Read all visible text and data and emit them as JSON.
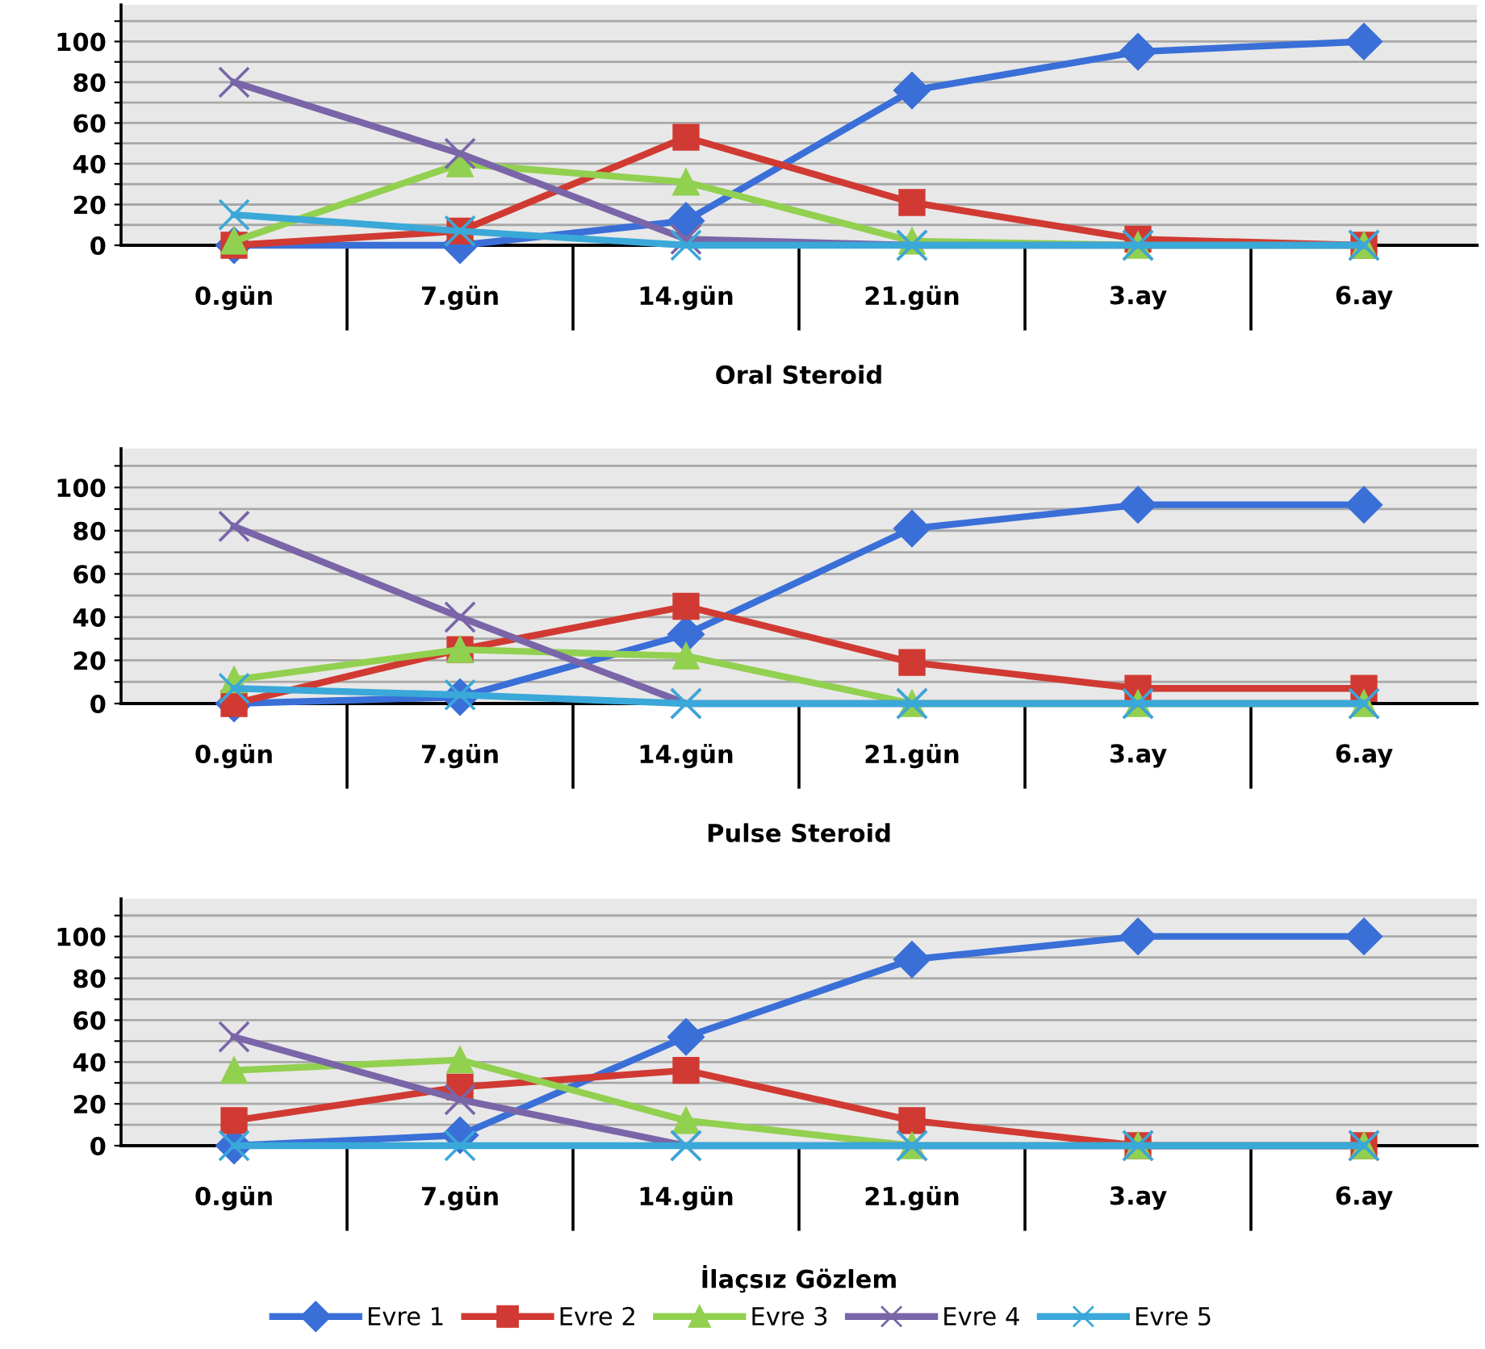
{
  "chart_data": [
    {
      "type": "line",
      "xlabel": "Oral Steroid",
      "categories": [
        "0.gün",
        "7.gün",
        "14.gün",
        "21.gün",
        "3.ay",
        "6.ay"
      ],
      "ylim": [
        0,
        118
      ],
      "yticks": [
        0,
        {
          "value": 10,
          "label": null
        },
        20,
        {
          "value": 30,
          "label": null
        },
        40,
        {
          "value": 50,
          "label": null
        },
        60,
        {
          "value": 70,
          "label": null
        },
        80,
        {
          "value": 90,
          "label": null
        },
        100,
        {
          "value": 110,
          "label": null
        }
      ],
      "grid": "y",
      "legend": "bottom",
      "tick_labels": "y",
      "series": [
        {
          "name": "Evre 1",
          "color": "#3a6fd8",
          "marker": "diamond",
          "values": [
            0,
            0,
            12,
            76,
            95,
            100
          ]
        },
        {
          "name": "Evre 2",
          "color": "#d03a32",
          "marker": "square",
          "values": [
            0,
            7,
            53,
            21,
            3,
            0
          ]
        },
        {
          "name": "Evre 3",
          "color": "#92d050",
          "marker": "triangle",
          "values": [
            2,
            40,
            31,
            2,
            0,
            0
          ]
        },
        {
          "name": "Evre 4",
          "color": "#7a65a8",
          "marker": "cross",
          "values": [
            80,
            45,
            3,
            0,
            0,
            0
          ]
        },
        {
          "name": "Evre 5",
          "color": "#3aa8d8",
          "marker": "cross",
          "values": [
            15,
            7,
            0,
            0,
            0,
            0
          ]
        }
      ]
    },
    {
      "type": "line",
      "xlabel": "Pulse Steroid",
      "categories": [
        "0.gün",
        "7.gün",
        "14.gün",
        "21.gün",
        "3.ay",
        "6.ay"
      ],
      "ylim": [
        0,
        118
      ],
      "yticks": [
        0,
        {
          "value": 10,
          "label": null
        },
        20,
        {
          "value": 30,
          "label": null
        },
        40,
        {
          "value": 50,
          "label": null
        },
        60,
        {
          "value": 70,
          "label": null
        },
        80,
        {
          "value": 90,
          "label": null
        },
        100,
        {
          "value": 110,
          "label": null
        }
      ],
      "grid": "y",
      "legend": false,
      "tick_labels": "y",
      "series": [
        {
          "color": "#3a6fd8",
          "marker": "diamond",
          "values": [
            0,
            3,
            32,
            81,
            92,
            92
          ]
        },
        {
          "color": "#d03a32",
          "marker": "square",
          "values": [
            0,
            25,
            45,
            19,
            7,
            7
          ]
        },
        {
          "color": "#92d050",
          "marker": "triangle",
          "values": [
            11,
            25,
            22,
            0,
            0,
            0
          ]
        },
        {
          "color": "#7a65a8",
          "marker": "cross",
          "values": [
            82,
            40,
            0,
            0,
            0,
            0
          ]
        },
        {
          "color": "#3aa8d8",
          "marker": "cross",
          "values": [
            7,
            4,
            0,
            0,
            0,
            0
          ]
        }
      ]
    },
    {
      "type": "line",
      "xlabel": "İlaçsız Gözlem",
      "categories": [
        "0.gün",
        "7.gün",
        "14.gün",
        "21.gün",
        "3.ay",
        "6.ay"
      ],
      "ylim": [
        0,
        118
      ],
      "yticks": [
        0,
        {
          "value": 10,
          "label": null
        },
        20,
        {
          "value": 30,
          "label": null
        },
        40,
        {
          "value": 50,
          "label": null
        },
        60,
        {
          "value": 70,
          "label": null
        },
        80,
        {
          "value": 90,
          "label": null
        },
        100,
        {
          "value": 110,
          "label": null
        }
      ],
      "grid": "y",
      "tick_labels": "y",
      "series": [
        {
          "color": "#3a6fd8",
          "marker": "diamond",
          "values": [
            0,
            5,
            52,
            89,
            100,
            100
          ]
        },
        {
          "color": "#d03a32",
          "marker": "square",
          "values": [
            12,
            28,
            36,
            12,
            0,
            0
          ]
        },
        {
          "color": "#92d050",
          "marker": "triangle",
          "values": [
            36,
            41,
            12,
            0,
            0,
            0
          ]
        },
        {
          "color": "#7a65a8",
          "marker": "cross",
          "values": [
            52,
            22,
            0,
            0,
            0,
            0
          ]
        },
        {
          "color": "#3aa8d8",
          "marker": "cross",
          "values": [
            0,
            0,
            0,
            0,
            0,
            0
          ]
        }
      ]
    }
  ]
}
